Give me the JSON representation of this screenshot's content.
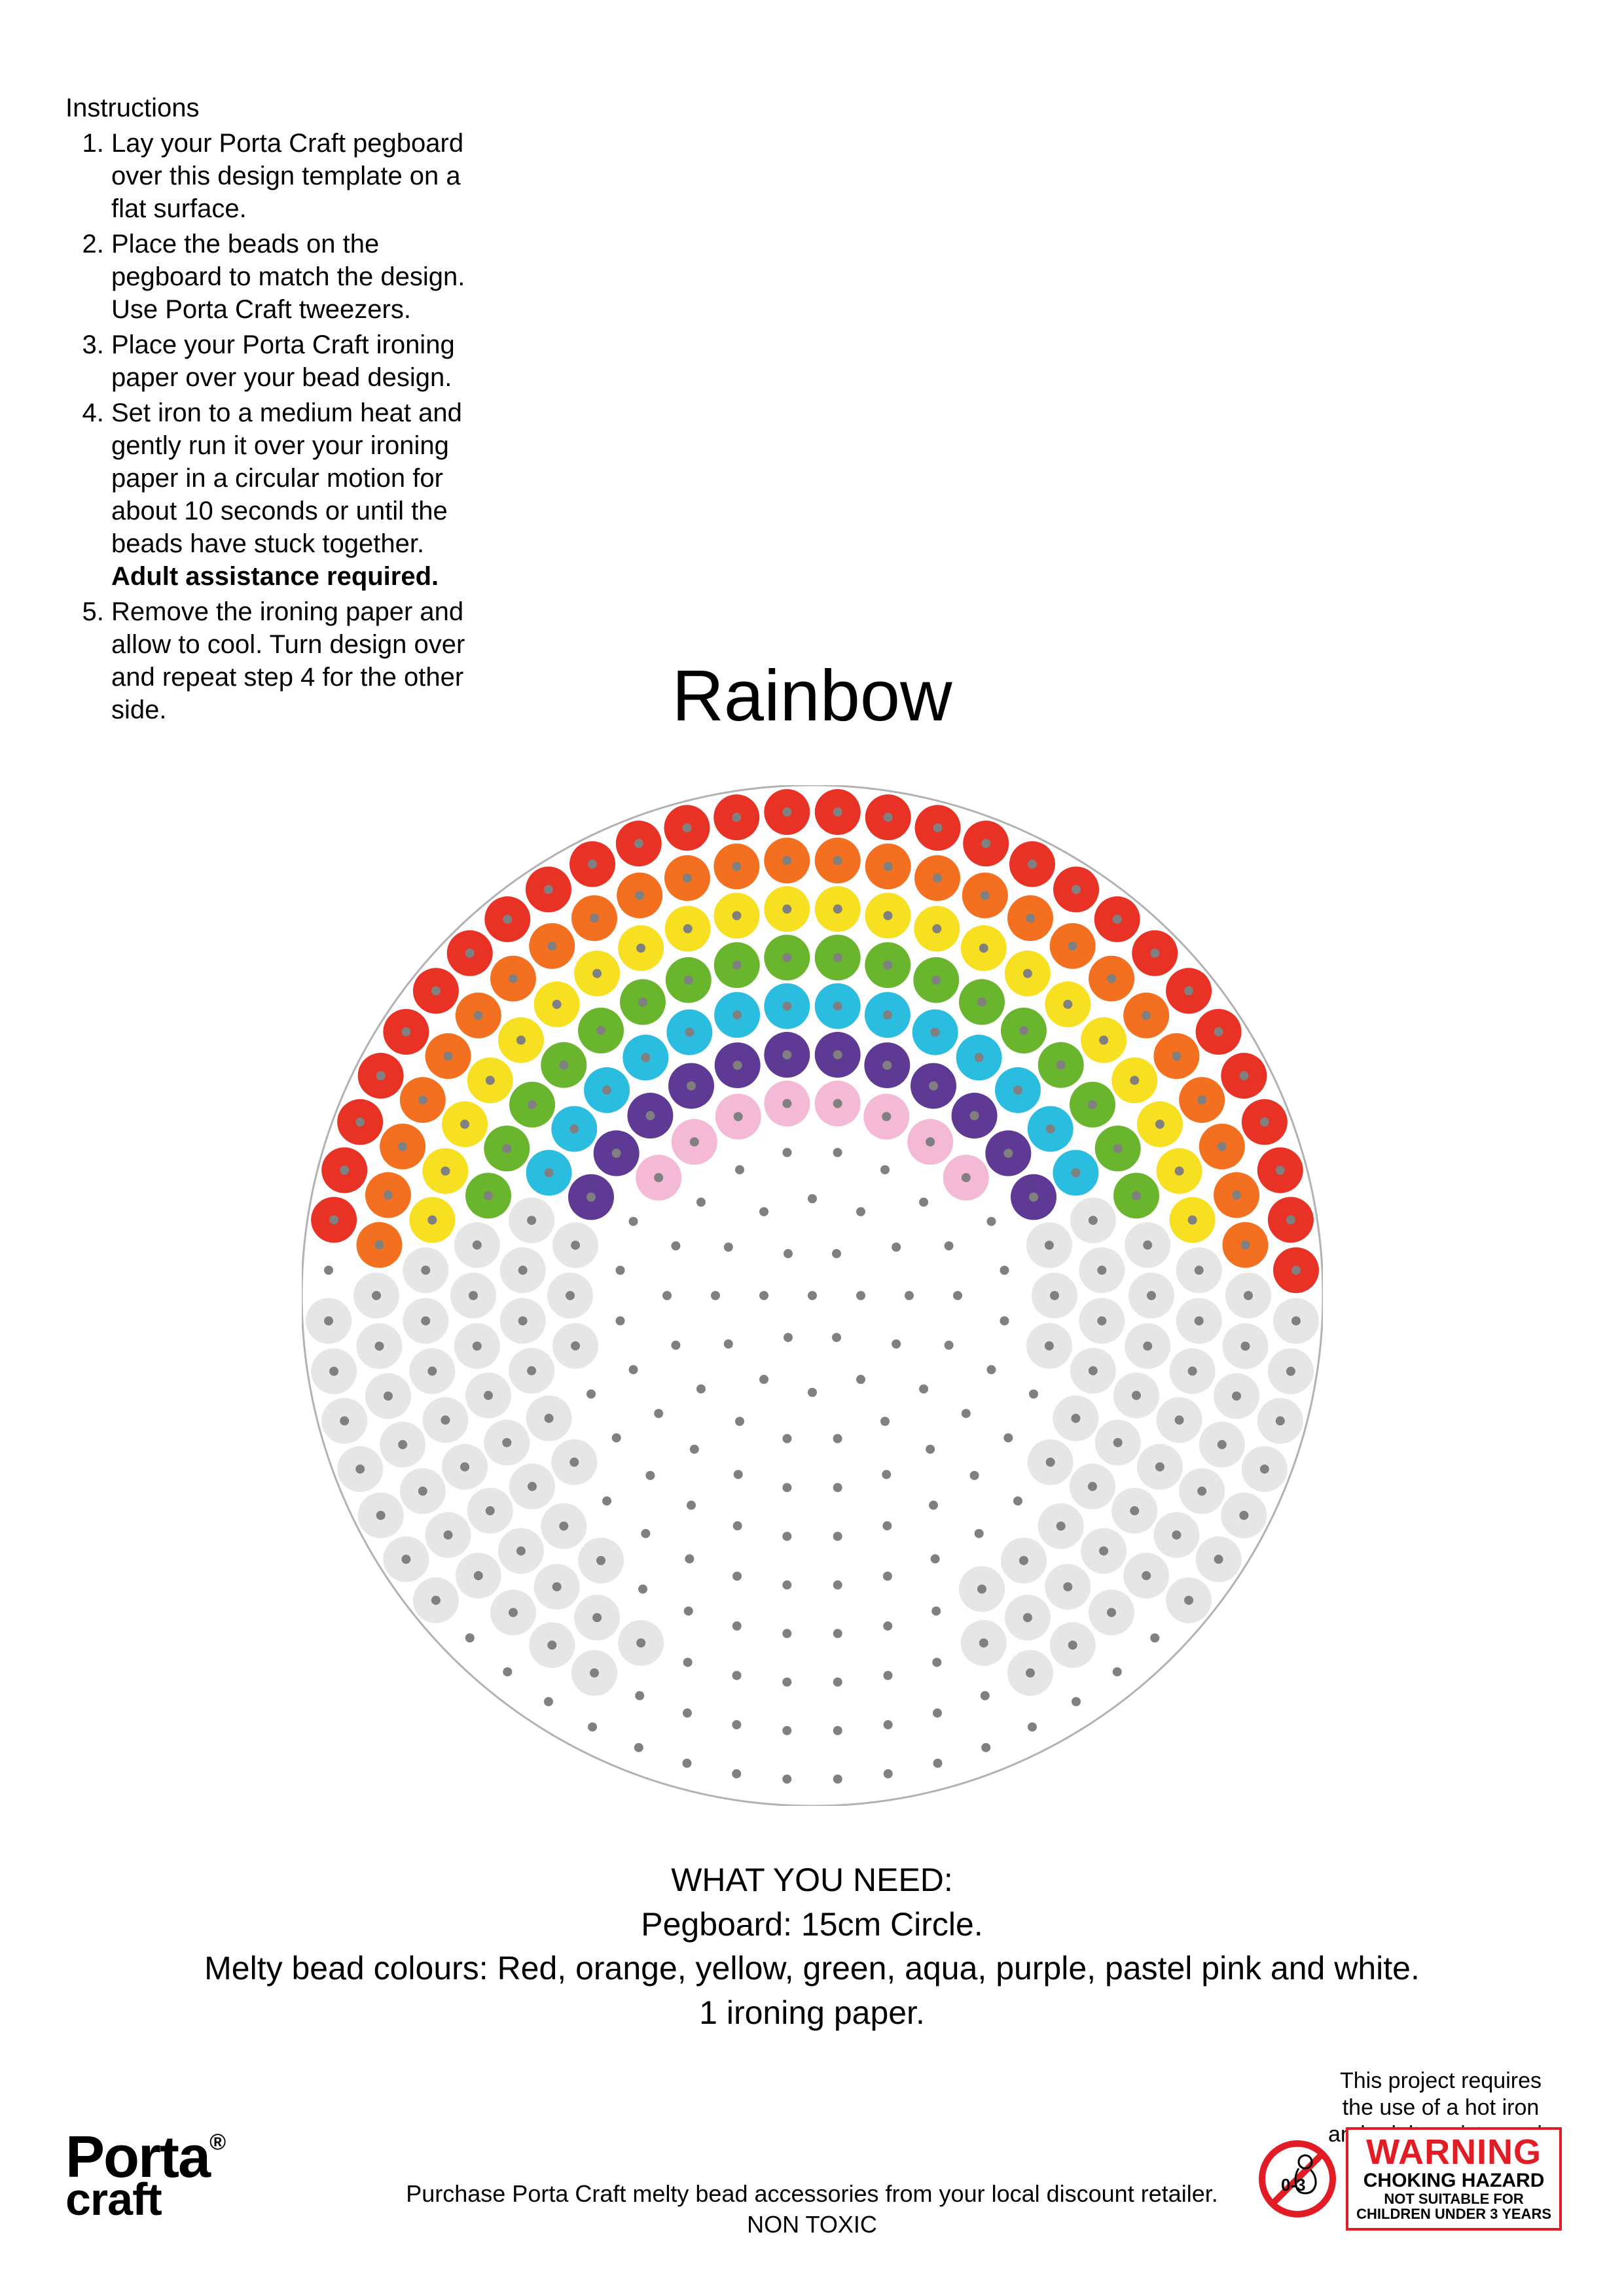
{
  "title": "Rainbow",
  "instructions": {
    "heading": "Instructions",
    "items": [
      {
        "text": "Lay your Porta Craft pegboard over this design template on a flat surface."
      },
      {
        "text": "Place the beads on the pegboard to match the design. Use Porta Craft tweezers."
      },
      {
        "text": "Place your Porta Craft ironing paper over your bead design."
      },
      {
        "text": "Set iron to a medium heat and gently run it over your ironing paper in a circular motion for about 10 seconds or until the beads have stuck together.",
        "bold_suffix": "Adult assistance required."
      },
      {
        "text": "Remove the ironing paper and allow to cool. Turn design over and repeat step 4 for the other side."
      }
    ]
  },
  "needs": {
    "heading": "WHAT YOU NEED:",
    "lines": [
      "Pegboard: 15cm Circle.",
      "Melty bead colours: Red, orange, yellow, green, aqua, purple, pastel pink and white.",
      "1 ironing paper."
    ]
  },
  "footer": {
    "line1": "Purchase Porta Craft melty bead accessories from your local discount retailer.",
    "line2": "NON TOXIC"
  },
  "safety_note": "This project requires the use of a hot iron and adult assistance is required.",
  "logo": {
    "line1": "Porta",
    "line2": "craft",
    "registered": "®"
  },
  "age_icon": {
    "label": "0-3",
    "stroke": "#e21c25"
  },
  "warning": {
    "border": "#e21c25",
    "title": "WARNING",
    "line2": "CHOKING HAZARD",
    "line3a": "NOT SUITABLE FOR",
    "line3b": "CHILDREN UNDER 3 YEARS"
  },
  "diagram": {
    "size": 1560,
    "board_diameter": 1560,
    "board_stroke": "#b2b2b2",
    "board_stroke_width": 3,
    "peg_dot_color": "#808080",
    "peg_dot_radius": 7,
    "bead_radius": 35,
    "ring_peg_counts": [
      1,
      6,
      12,
      18,
      24,
      30,
      36,
      42,
      48,
      54,
      60
    ],
    "ring_spacing": 74,
    "ring_rotation_deg": [
      0,
      0,
      0,
      0,
      7.5,
      0,
      5,
      0,
      3.75,
      0,
      3
    ],
    "colors": {
      "red": "#e93226",
      "orange": "#f37021",
      "yellow": "#f7e021",
      "green": "#6ab52e",
      "aqua": "#2bbde0",
      "purple": "#5f3a95",
      "pink": "#f4b9d4",
      "white": "#e6e6e6"
    },
    "arcs": [
      {
        "ring": 10,
        "color": "red",
        "from_deg": 183,
        "to_deg": 357
      },
      {
        "ring": 9,
        "color": "orange",
        "from_deg": 186,
        "to_deg": 354
      },
      {
        "ring": 8,
        "color": "yellow",
        "from_deg": 189,
        "to_deg": 351
      },
      {
        "ring": 7,
        "color": "green",
        "from_deg": 192,
        "to_deg": 348
      },
      {
        "ring": 6,
        "color": "aqua",
        "from_deg": 196,
        "to_deg": 344
      },
      {
        "ring": 5,
        "color": "purple",
        "from_deg": 200,
        "to_deg": 340
      },
      {
        "ring": 4,
        "color": "pink",
        "from_deg": 205,
        "to_deg": 335
      }
    ],
    "clouds": [
      {
        "ring": 10,
        "color": "white",
        "from_deg": 358,
        "to_deg": 402
      },
      {
        "ring": 10,
        "color": "white",
        "from_deg": 138,
        "to_deg": 182
      },
      {
        "ring": 9,
        "color": "white",
        "from_deg": 355,
        "to_deg": 425
      },
      {
        "ring": 9,
        "color": "white",
        "from_deg": 115,
        "to_deg": 185
      },
      {
        "ring": 8,
        "color": "white",
        "from_deg": 352,
        "to_deg": 430
      },
      {
        "ring": 8,
        "color": "white",
        "from_deg": 110,
        "to_deg": 188
      },
      {
        "ring": 7,
        "color": "white",
        "from_deg": 349,
        "to_deg": 420
      },
      {
        "ring": 7,
        "color": "white",
        "from_deg": 120,
        "to_deg": 191
      },
      {
        "ring": 6,
        "color": "white",
        "from_deg": 345,
        "to_deg": 400
      },
      {
        "ring": 6,
        "color": "white",
        "from_deg": 140,
        "to_deg": 195
      },
      {
        "ring": 5,
        "color": "white",
        "from_deg": 341,
        "to_deg": 372
      },
      {
        "ring": 5,
        "color": "white",
        "from_deg": 168,
        "to_deg": 199
      }
    ]
  }
}
